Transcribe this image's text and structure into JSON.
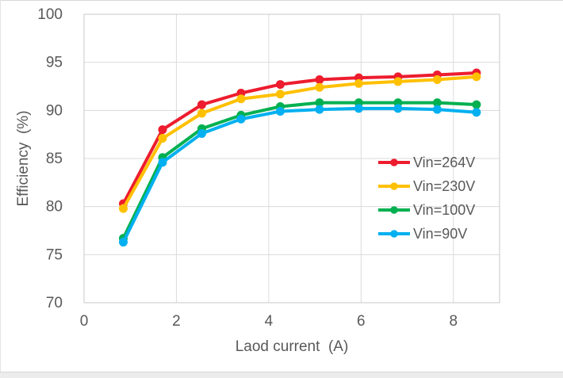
{
  "chart_data": {
    "type": "line",
    "title": "",
    "xlabel": "Laod current  (A)",
    "ylabel": "Efficiency  (%)",
    "xlim": [
      0,
      9
    ],
    "ylim": [
      70,
      100
    ],
    "x_ticks": [
      0,
      2,
      4,
      6,
      8
    ],
    "y_ticks": [
      70,
      75,
      80,
      85,
      90,
      95,
      100
    ],
    "grid": true,
    "legend_position": "inside-right",
    "marker": "circle",
    "x": [
      0.85,
      1.7,
      2.55,
      3.4,
      4.25,
      5.1,
      5.95,
      6.8,
      7.65,
      8.5
    ],
    "series": [
      {
        "name": "Vin=264V",
        "color": "#ED1C2E",
        "values": [
          80.3,
          88.0,
          90.6,
          91.8,
          92.7,
          93.2,
          93.4,
          93.5,
          93.7,
          93.9
        ]
      },
      {
        "name": "Vin=230V",
        "color": "#FFC000",
        "values": [
          79.8,
          87.1,
          89.7,
          91.2,
          91.7,
          92.4,
          92.8,
          93.0,
          93.2,
          93.5
        ]
      },
      {
        "name": "Vin=100V",
        "color": "#00B050",
        "values": [
          76.7,
          85.1,
          88.1,
          89.5,
          90.4,
          90.8,
          90.8,
          90.8,
          90.8,
          90.6
        ]
      },
      {
        "name": "Vin=90V",
        "color": "#00B0F0",
        "values": [
          76.3,
          84.6,
          87.6,
          89.1,
          89.9,
          90.1,
          90.2,
          90.2,
          90.1,
          89.8
        ]
      }
    ],
    "colors": {
      "gridline": "#DBDBDB",
      "axis_line": "#C8C8C8",
      "label_text": "#595959",
      "background": "#FFFFFF"
    }
  }
}
